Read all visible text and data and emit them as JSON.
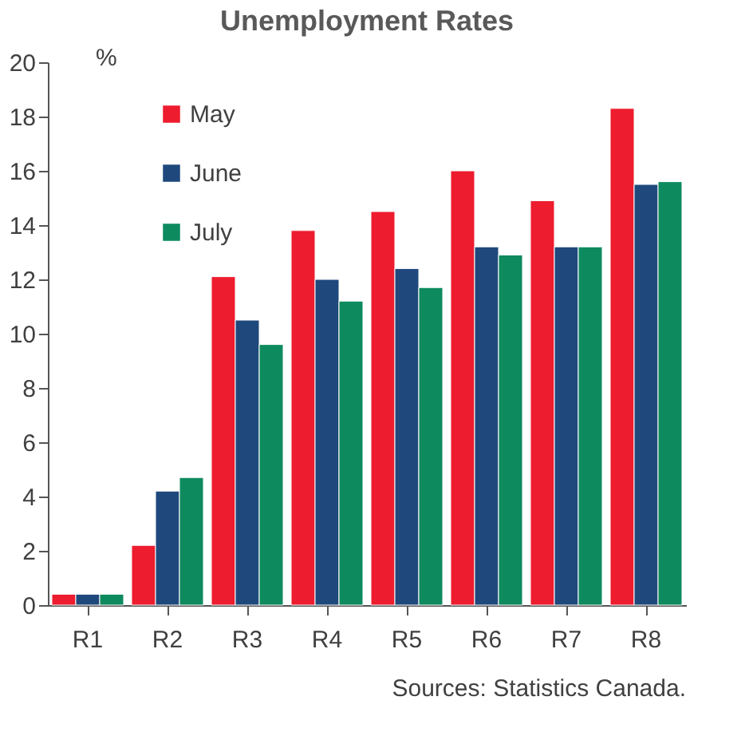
{
  "chart_data": {
    "type": "bar",
    "title": "Unemployment Rates",
    "ylabel": "%",
    "categories": [
      "R1",
      "R2",
      "R3",
      "R4",
      "R5",
      "R6",
      "R7",
      "R8"
    ],
    "series": [
      {
        "name": "May",
        "color": "#ed1c2e",
        "values": [
          0.4,
          2.2,
          12.1,
          13.8,
          14.5,
          16.0,
          14.9,
          18.3
        ]
      },
      {
        "name": "June",
        "color": "#1f497d",
        "values": [
          0.4,
          4.2,
          10.5,
          12.0,
          12.4,
          13.2,
          13.2,
          15.5
        ]
      },
      {
        "name": "July",
        "color": "#0e8a5f",
        "values": [
          0.4,
          4.7,
          9.6,
          11.2,
          11.7,
          12.9,
          13.2,
          15.6
        ]
      }
    ],
    "ylim": [
      0,
      20
    ],
    "yticks": [
      0,
      2,
      4,
      6,
      8,
      10,
      12,
      14,
      16,
      18,
      20
    ],
    "grid": false,
    "legend": "top left",
    "annotations": [
      "Sources: Statistics Canada."
    ]
  }
}
